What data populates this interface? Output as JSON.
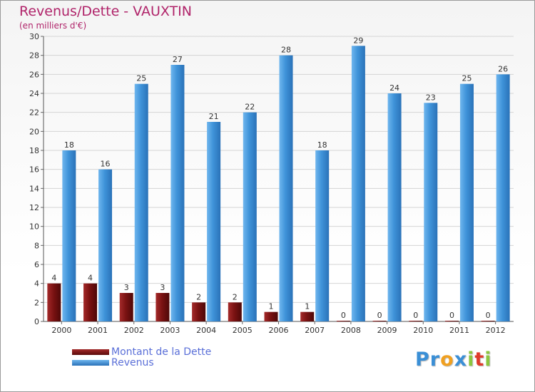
{
  "header": {
    "title": "Revenus/Dette - VAUXTIN",
    "subtitle": "(en milliers d'€)"
  },
  "colors": {
    "debt": "#7a1212",
    "revenue": "#3f93d9",
    "title": "#b0246a",
    "legend_text": "#5a6fd8"
  },
  "chart_data": {
    "type": "bar",
    "title": "Revenus/Dette - VAUXTIN",
    "subtitle": "(en milliers d'€)",
    "xlabel": "",
    "ylabel": "",
    "ylim": [
      0,
      30
    ],
    "y_ticks": [
      0,
      2,
      4,
      6,
      8,
      10,
      12,
      14,
      16,
      18,
      20,
      22,
      24,
      26,
      28,
      30
    ],
    "grid": true,
    "legend_position": "bottom-left",
    "categories": [
      "2000",
      "2001",
      "2002",
      "2003",
      "2004",
      "2005",
      "2006",
      "2007",
      "2008",
      "2009",
      "2010",
      "2011",
      "2012"
    ],
    "series": [
      {
        "name": "Montant de la Dette",
        "color": "#7a1212",
        "values": [
          4,
          4,
          3,
          3,
          2,
          2,
          1,
          1,
          0,
          0,
          0,
          0,
          0
        ]
      },
      {
        "name": "Revenus",
        "color": "#3f93d9",
        "values": [
          18,
          16,
          25,
          27,
          21,
          22,
          28,
          18,
          29,
          24,
          23,
          25,
          26
        ]
      }
    ]
  },
  "logo": {
    "letters": [
      "P",
      "r",
      "o",
      "x",
      "i",
      "t",
      "i"
    ],
    "colors": [
      "#3a8fd6",
      "#3a8fd6",
      "#f0a020",
      "#3a8fd6",
      "#8cc63f",
      "#e03a2a",
      "#8cc63f"
    ]
  }
}
